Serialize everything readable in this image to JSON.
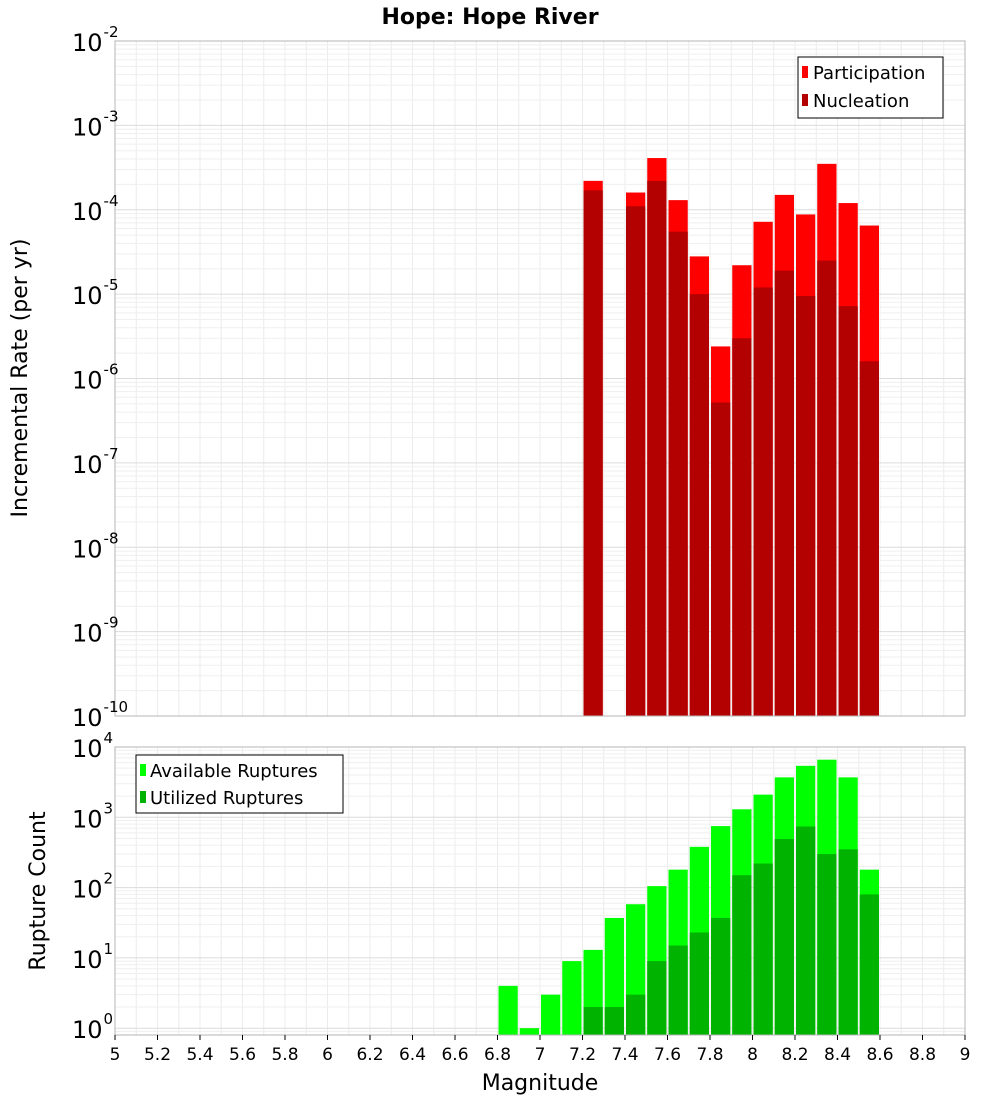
{
  "chart_data": [
    {
      "type": "bar",
      "title": "Hope: Hope River",
      "ylabel": "Incremental Rate (per yr)",
      "xlabel": "",
      "yscale": "log",
      "ylim": [
        1e-10,
        0.01
      ],
      "xlim": [
        5,
        9
      ],
      "grid": true,
      "legend_position": "top-right",
      "bin_width": 0.1,
      "series": [
        {
          "name": "Participation",
          "color": "#ff0000",
          "x": [
            7.25,
            7.45,
            7.55,
            7.65,
            7.75,
            7.85,
            7.95,
            8.05,
            8.15,
            8.25,
            8.35,
            8.45,
            8.55
          ],
          "values": [
            0.00022,
            0.00016,
            0.00041,
            0.00013,
            2.8e-05,
            2.4e-06,
            2.2e-05,
            7.2e-05,
            0.00015,
            8.8e-05,
            0.00035,
            0.00012,
            6.5e-05
          ]
        },
        {
          "name": "Nucleation",
          "color": "#b30000",
          "x": [
            7.25,
            7.45,
            7.55,
            7.65,
            7.75,
            7.85,
            7.95,
            8.05,
            8.15,
            8.25,
            8.35,
            8.45,
            8.55
          ],
          "values": [
            0.00017,
            0.00011,
            0.00022,
            5.5e-05,
            1e-05,
            5.2e-07,
            3e-06,
            1.2e-05,
            1.9e-05,
            9.5e-06,
            2.5e-05,
            7.2e-06,
            1.6e-06
          ]
        }
      ]
    },
    {
      "type": "bar",
      "title": "",
      "ylabel": "Rupture Count",
      "xlabel": "Magnitude",
      "yscale": "log",
      "ylim": [
        0.8,
        10000
      ],
      "xlim": [
        5,
        9
      ],
      "grid": true,
      "legend_position": "top-left",
      "bin_width": 0.1,
      "series": [
        {
          "name": "Available Ruptures",
          "color": "#00ff00",
          "x": [
            6.85,
            6.95,
            7.05,
            7.15,
            7.25,
            7.35,
            7.45,
            7.55,
            7.65,
            7.75,
            7.85,
            7.95,
            8.05,
            8.15,
            8.25,
            8.35,
            8.45,
            8.55
          ],
          "values": [
            4,
            1,
            3,
            9,
            13,
            37,
            58,
            105,
            180,
            380,
            750,
            1300,
            2100,
            3700,
            5400,
            6600,
            3700,
            180
          ]
        },
        {
          "name": "Utilized Ruptures",
          "color": "#00b300",
          "x": [
            7.25,
            7.35,
            7.45,
            7.55,
            7.65,
            7.75,
            7.85,
            7.95,
            8.05,
            8.15,
            8.25,
            8.35,
            8.45,
            8.55
          ],
          "values": [
            2,
            2,
            3,
            9,
            15,
            23,
            37,
            150,
            220,
            490,
            740,
            300,
            350,
            80
          ]
        }
      ],
      "xticks": [
        "5",
        "5.2",
        "5.4",
        "5.6",
        "5.8",
        "6",
        "6.2",
        "6.4",
        "6.6",
        "6.8",
        "7",
        "7.2",
        "7.4",
        "7.6",
        "7.8",
        "8",
        "8.2",
        "8.4",
        "8.6",
        "8.8",
        "9"
      ]
    }
  ]
}
